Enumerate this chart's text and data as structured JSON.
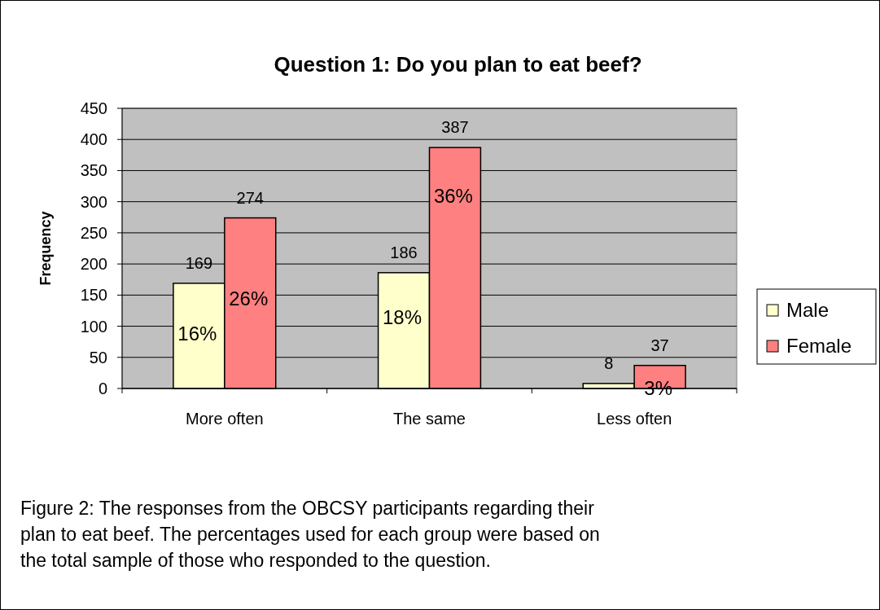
{
  "chart_data": {
    "type": "bar",
    "title": "Question 1: Do you plan to eat beef?",
    "ylabel": "Frequency",
    "categories": [
      "More often",
      "The same",
      "Less often"
    ],
    "series": [
      {
        "name": "Male",
        "color": "#ffffcc",
        "values": [
          169,
          186,
          8
        ]
      },
      {
        "name": "Female",
        "color": "#ff8080",
        "values": [
          274,
          387,
          37
        ]
      }
    ],
    "ylim": [
      0,
      450
    ],
    "yticks": [
      0,
      50,
      100,
      150,
      200,
      250,
      300,
      350,
      400,
      450
    ],
    "grid": "y",
    "legend": "right",
    "data_labels": true,
    "annotations": [
      {
        "text": "16%",
        "x": "More often",
        "y": 88
      },
      {
        "text": "26%",
        "x": "More often",
        "y": 145
      },
      {
        "text": "18%",
        "x": "The same",
        "y": 114
      },
      {
        "text": "36%",
        "x": "The same",
        "y": 309
      },
      {
        "text": "3%",
        "x": "Less often",
        "y": 0
      },
      "Figure 2: The responses from the OBCSY participants regarding their plan to eat beef.  The percentages used for each group were based on the total sample of those who responded to the question."
    ]
  }
}
